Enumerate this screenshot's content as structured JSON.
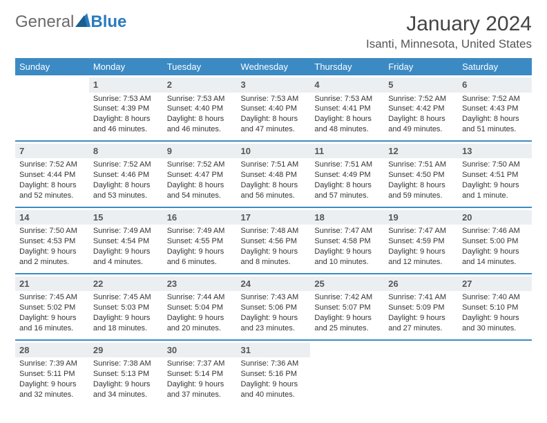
{
  "brand": {
    "part1": "General",
    "part2": "Blue"
  },
  "title": "January 2024",
  "location": "Isanti, Minnesota, United States",
  "colors": {
    "header_bg": "#3b8ac4",
    "header_text": "#ffffff",
    "rule": "#3b8ac4",
    "daynum_bg": "#eceff1",
    "brand_grey": "#6a6a6a",
    "brand_blue": "#2a7bbf"
  },
  "day_headers": [
    "Sunday",
    "Monday",
    "Tuesday",
    "Wednesday",
    "Thursday",
    "Friday",
    "Saturday"
  ],
  "weeks": [
    [
      null,
      {
        "n": "1",
        "sr": "Sunrise: 7:53 AM",
        "ss": "Sunset: 4:39 PM",
        "d1": "Daylight: 8 hours",
        "d2": "and 46 minutes."
      },
      {
        "n": "2",
        "sr": "Sunrise: 7:53 AM",
        "ss": "Sunset: 4:40 PM",
        "d1": "Daylight: 8 hours",
        "d2": "and 46 minutes."
      },
      {
        "n": "3",
        "sr": "Sunrise: 7:53 AM",
        "ss": "Sunset: 4:40 PM",
        "d1": "Daylight: 8 hours",
        "d2": "and 47 minutes."
      },
      {
        "n": "4",
        "sr": "Sunrise: 7:53 AM",
        "ss": "Sunset: 4:41 PM",
        "d1": "Daylight: 8 hours",
        "d2": "and 48 minutes."
      },
      {
        "n": "5",
        "sr": "Sunrise: 7:52 AM",
        "ss": "Sunset: 4:42 PM",
        "d1": "Daylight: 8 hours",
        "d2": "and 49 minutes."
      },
      {
        "n": "6",
        "sr": "Sunrise: 7:52 AM",
        "ss": "Sunset: 4:43 PM",
        "d1": "Daylight: 8 hours",
        "d2": "and 51 minutes."
      }
    ],
    [
      {
        "n": "7",
        "sr": "Sunrise: 7:52 AM",
        "ss": "Sunset: 4:44 PM",
        "d1": "Daylight: 8 hours",
        "d2": "and 52 minutes."
      },
      {
        "n": "8",
        "sr": "Sunrise: 7:52 AM",
        "ss": "Sunset: 4:46 PM",
        "d1": "Daylight: 8 hours",
        "d2": "and 53 minutes."
      },
      {
        "n": "9",
        "sr": "Sunrise: 7:52 AM",
        "ss": "Sunset: 4:47 PM",
        "d1": "Daylight: 8 hours",
        "d2": "and 54 minutes."
      },
      {
        "n": "10",
        "sr": "Sunrise: 7:51 AM",
        "ss": "Sunset: 4:48 PM",
        "d1": "Daylight: 8 hours",
        "d2": "and 56 minutes."
      },
      {
        "n": "11",
        "sr": "Sunrise: 7:51 AM",
        "ss": "Sunset: 4:49 PM",
        "d1": "Daylight: 8 hours",
        "d2": "and 57 minutes."
      },
      {
        "n": "12",
        "sr": "Sunrise: 7:51 AM",
        "ss": "Sunset: 4:50 PM",
        "d1": "Daylight: 8 hours",
        "d2": "and 59 minutes."
      },
      {
        "n": "13",
        "sr": "Sunrise: 7:50 AM",
        "ss": "Sunset: 4:51 PM",
        "d1": "Daylight: 9 hours",
        "d2": "and 1 minute."
      }
    ],
    [
      {
        "n": "14",
        "sr": "Sunrise: 7:50 AM",
        "ss": "Sunset: 4:53 PM",
        "d1": "Daylight: 9 hours",
        "d2": "and 2 minutes."
      },
      {
        "n": "15",
        "sr": "Sunrise: 7:49 AM",
        "ss": "Sunset: 4:54 PM",
        "d1": "Daylight: 9 hours",
        "d2": "and 4 minutes."
      },
      {
        "n": "16",
        "sr": "Sunrise: 7:49 AM",
        "ss": "Sunset: 4:55 PM",
        "d1": "Daylight: 9 hours",
        "d2": "and 6 minutes."
      },
      {
        "n": "17",
        "sr": "Sunrise: 7:48 AM",
        "ss": "Sunset: 4:56 PM",
        "d1": "Daylight: 9 hours",
        "d2": "and 8 minutes."
      },
      {
        "n": "18",
        "sr": "Sunrise: 7:47 AM",
        "ss": "Sunset: 4:58 PM",
        "d1": "Daylight: 9 hours",
        "d2": "and 10 minutes."
      },
      {
        "n": "19",
        "sr": "Sunrise: 7:47 AM",
        "ss": "Sunset: 4:59 PM",
        "d1": "Daylight: 9 hours",
        "d2": "and 12 minutes."
      },
      {
        "n": "20",
        "sr": "Sunrise: 7:46 AM",
        "ss": "Sunset: 5:00 PM",
        "d1": "Daylight: 9 hours",
        "d2": "and 14 minutes."
      }
    ],
    [
      {
        "n": "21",
        "sr": "Sunrise: 7:45 AM",
        "ss": "Sunset: 5:02 PM",
        "d1": "Daylight: 9 hours",
        "d2": "and 16 minutes."
      },
      {
        "n": "22",
        "sr": "Sunrise: 7:45 AM",
        "ss": "Sunset: 5:03 PM",
        "d1": "Daylight: 9 hours",
        "d2": "and 18 minutes."
      },
      {
        "n": "23",
        "sr": "Sunrise: 7:44 AM",
        "ss": "Sunset: 5:04 PM",
        "d1": "Daylight: 9 hours",
        "d2": "and 20 minutes."
      },
      {
        "n": "24",
        "sr": "Sunrise: 7:43 AM",
        "ss": "Sunset: 5:06 PM",
        "d1": "Daylight: 9 hours",
        "d2": "and 23 minutes."
      },
      {
        "n": "25",
        "sr": "Sunrise: 7:42 AM",
        "ss": "Sunset: 5:07 PM",
        "d1": "Daylight: 9 hours",
        "d2": "and 25 minutes."
      },
      {
        "n": "26",
        "sr": "Sunrise: 7:41 AM",
        "ss": "Sunset: 5:09 PM",
        "d1": "Daylight: 9 hours",
        "d2": "and 27 minutes."
      },
      {
        "n": "27",
        "sr": "Sunrise: 7:40 AM",
        "ss": "Sunset: 5:10 PM",
        "d1": "Daylight: 9 hours",
        "d2": "and 30 minutes."
      }
    ],
    [
      {
        "n": "28",
        "sr": "Sunrise: 7:39 AM",
        "ss": "Sunset: 5:11 PM",
        "d1": "Daylight: 9 hours",
        "d2": "and 32 minutes."
      },
      {
        "n": "29",
        "sr": "Sunrise: 7:38 AM",
        "ss": "Sunset: 5:13 PM",
        "d1": "Daylight: 9 hours",
        "d2": "and 34 minutes."
      },
      {
        "n": "30",
        "sr": "Sunrise: 7:37 AM",
        "ss": "Sunset: 5:14 PM",
        "d1": "Daylight: 9 hours",
        "d2": "and 37 minutes."
      },
      {
        "n": "31",
        "sr": "Sunrise: 7:36 AM",
        "ss": "Sunset: 5:16 PM",
        "d1": "Daylight: 9 hours",
        "d2": "and 40 minutes."
      },
      null,
      null,
      null
    ]
  ]
}
